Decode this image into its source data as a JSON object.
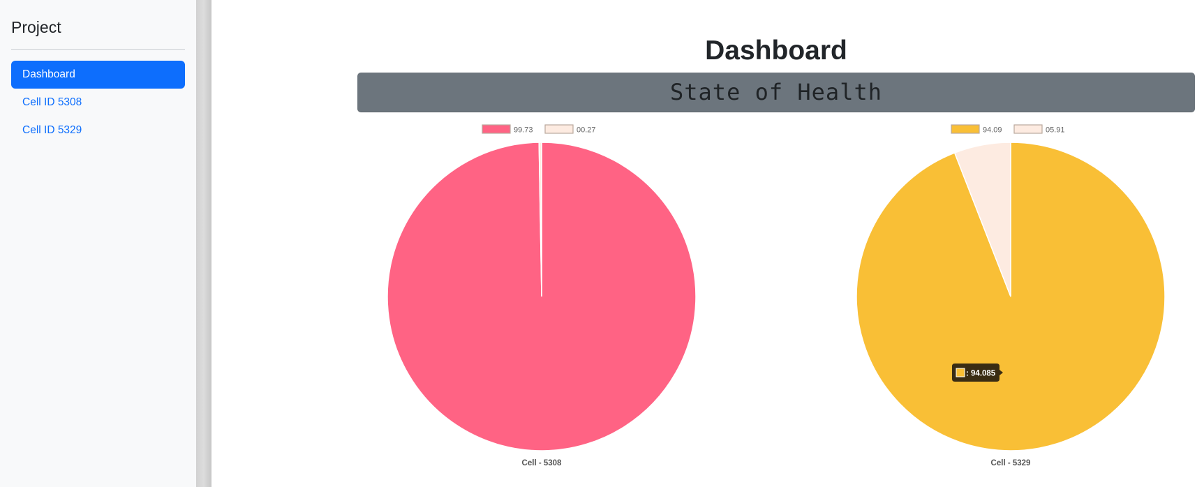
{
  "sidebar": {
    "brand": "Project",
    "items": [
      {
        "label": "Dashboard",
        "active": true
      },
      {
        "label": "Cell ID 5308",
        "active": false
      },
      {
        "label": "Cell ID 5329",
        "active": false
      }
    ]
  },
  "main": {
    "title": "Dashboard",
    "banner": "State of Health"
  },
  "colors": {
    "primary": "#0d6efd",
    "banner": "#6c757d",
    "pink": "#ff6384",
    "yellow": "#f9bf36",
    "remainder": "#fdebe1"
  },
  "chart_data": [
    {
      "type": "pie",
      "caption": "Cell - 5308",
      "legend": [
        "99.73",
        "00.27"
      ],
      "values": [
        99.73,
        0.27
      ],
      "colors": [
        "#ff6384",
        "#fdebe1"
      ]
    },
    {
      "type": "pie",
      "caption": "Cell - 5329",
      "legend": [
        "94.09",
        "05.91"
      ],
      "values": [
        94.085,
        5.915
      ],
      "colors": [
        "#f9bf36",
        "#fdebe1"
      ],
      "tooltip": ": 94.085"
    }
  ]
}
